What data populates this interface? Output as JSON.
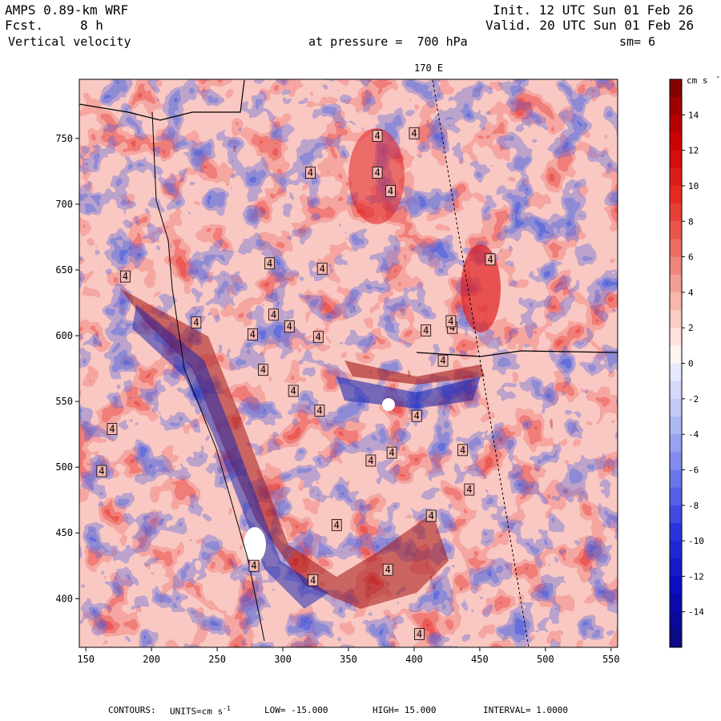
{
  "header": {
    "model": "AMPS 0.89-km WRF",
    "fcst_label": "Fcst.",
    "fcst_value": "8 h",
    "variable": "Vertical velocity",
    "init": "Init. 12 UTC Sun 01 Feb 26",
    "valid": "Valid. 20 UTC Sun 01 Feb 26",
    "pressure_label": "at pressure =  700 hPa",
    "smoothing": "sm= 6",
    "meridian_label": "170 E"
  },
  "chart_data": {
    "type": "heatmap",
    "title": "Vertical velocity at pressure = 700 hPa",
    "x_ticks": [
      150,
      200,
      250,
      300,
      350,
      400,
      450,
      500,
      550
    ],
    "y_ticks": [
      400,
      450,
      500,
      550,
      600,
      650,
      700,
      750
    ],
    "xlim": [
      145,
      555
    ],
    "ylim": [
      363,
      795
    ],
    "colorbar": {
      "units": "cm s",
      "units_exp": "-1",
      "tick_labels": [
        "14",
        "12",
        "10",
        "8",
        "6",
        "4",
        "2",
        "0",
        "-2",
        "-4",
        "-6",
        "-8",
        "-10",
        "-12",
        "-14"
      ],
      "range": [
        -16,
        16
      ]
    },
    "contour_labels": [
      {
        "text": "4",
        "x": 180,
        "y": 645
      },
      {
        "text": "4",
        "x": 290,
        "y": 655
      },
      {
        "text": "4",
        "x": 330,
        "y": 651
      },
      {
        "text": "4",
        "x": 372,
        "y": 752
      },
      {
        "text": "4",
        "x": 400,
        "y": 754
      },
      {
        "text": "4",
        "x": 321,
        "y": 724
      },
      {
        "text": "4",
        "x": 372,
        "y": 724
      },
      {
        "text": "4",
        "x": 382,
        "y": 710
      },
      {
        "text": "4",
        "x": 293,
        "y": 616
      },
      {
        "text": "4",
        "x": 277,
        "y": 601
      },
      {
        "text": "4",
        "x": 305,
        "y": 607
      },
      {
        "text": "4",
        "x": 327,
        "y": 599
      },
      {
        "text": "4",
        "x": 285,
        "y": 574
      },
      {
        "text": "4",
        "x": 308,
        "y": 558
      },
      {
        "text": "4",
        "x": 170,
        "y": 529
      },
      {
        "text": "4",
        "x": 162,
        "y": 497
      },
      {
        "text": "4",
        "x": 367,
        "y": 505
      },
      {
        "text": "4",
        "x": 383,
        "y": 511
      },
      {
        "text": "4",
        "x": 409,
        "y": 604
      },
      {
        "text": "4",
        "x": 422,
        "y": 581
      },
      {
        "text": "4",
        "x": 429,
        "y": 606
      },
      {
        "text": "4",
        "x": 458,
        "y": 658
      },
      {
        "text": "4",
        "x": 402,
        "y": 539
      },
      {
        "text": "4",
        "x": 437,
        "y": 513
      },
      {
        "text": "4",
        "x": 442,
        "y": 483
      },
      {
        "text": "4",
        "x": 413,
        "y": 463
      },
      {
        "text": "4",
        "x": 341,
        "y": 456
      },
      {
        "text": "4",
        "x": 278,
        "y": 425
      },
      {
        "text": "4",
        "x": 323,
        "y": 414
      },
      {
        "text": "4",
        "x": 404,
        "y": 373
      },
      {
        "text": "4",
        "x": 328,
        "y": 543
      },
      {
        "text": "4",
        "x": 380,
        "y": 422
      },
      {
        "text": "4",
        "x": 428,
        "y": 611
      },
      {
        "text": "4",
        "x": 234,
        "y": 610
      }
    ]
  },
  "footer": {
    "contours_label": "CONTOURS:",
    "units_prefix": "UNITS=cm s",
    "units_exp": "-1",
    "low": "LOW= -15.000",
    "high": "HIGH= 15.000",
    "interval": "INTERVAL= 1.0000"
  }
}
